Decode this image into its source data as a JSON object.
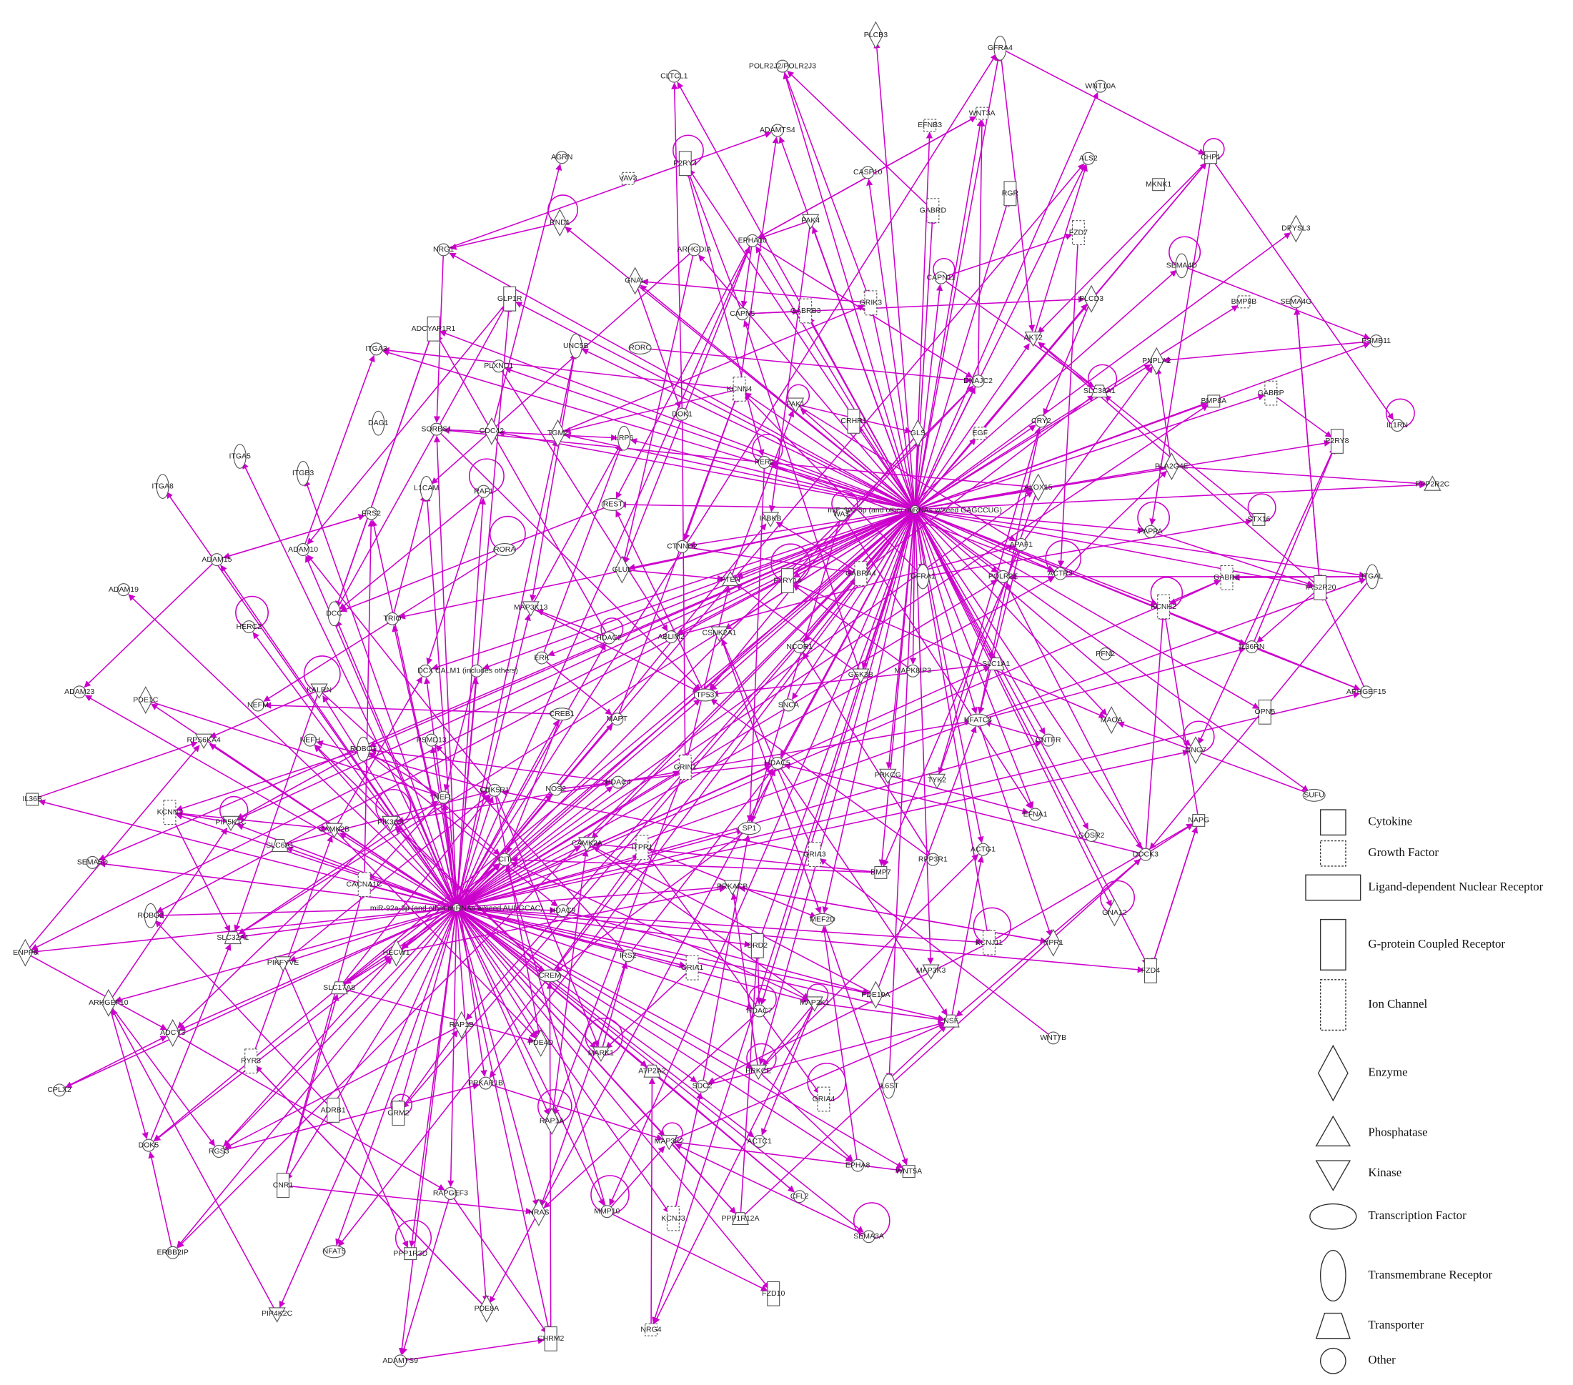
{
  "nodes": [
    {
      "label": "miR-92a-3p (and other miRNAs w/seed AUUGCAC)"
    },
    {
      "label": "miR-30c-5p (and other miRNAs w/seed GAGCCUG)"
    },
    {
      "label": "PLCB3"
    },
    {
      "label": "GFRA4"
    },
    {
      "label": "POLR2J2/POLR2J3"
    },
    {
      "label": "CLTCL1"
    },
    {
      "label": "WNT10A"
    },
    {
      "label": "ADAMTS4"
    },
    {
      "label": "EFNB3"
    },
    {
      "label": "WNT3A"
    },
    {
      "label": "ALS2"
    },
    {
      "label": "CHP1"
    },
    {
      "label": "AGRN"
    },
    {
      "label": "P2RY4"
    },
    {
      "label": "VAV3"
    },
    {
      "label": "CASP10"
    },
    {
      "label": "MKNK1"
    },
    {
      "label": "RGR"
    },
    {
      "label": "GABRD"
    },
    {
      "label": "RND1"
    },
    {
      "label": "PAK4"
    },
    {
      "label": "FZD7"
    },
    {
      "label": "DPYSL3"
    },
    {
      "label": "NRG1"
    },
    {
      "label": "ARHGDIA"
    },
    {
      "label": "EPHA10"
    },
    {
      "label": "SEMA4D"
    },
    {
      "label": "GNAL"
    },
    {
      "label": "CAPN11"
    },
    {
      "label": "GLP1R"
    },
    {
      "label": "GABRB3"
    },
    {
      "label": "GRIK3"
    },
    {
      "label": "PLCD3"
    },
    {
      "label": "BMP8B"
    },
    {
      "label": "SEMA4G"
    },
    {
      "label": "CAPN5"
    },
    {
      "label": "ADCYAP1R1"
    },
    {
      "label": "UNC5B"
    },
    {
      "label": "RORC"
    },
    {
      "label": "PSMB11"
    },
    {
      "label": "ITGA3"
    },
    {
      "label": "AKT2"
    },
    {
      "label": "PNPLA2"
    },
    {
      "label": "PLXNC1"
    },
    {
      "label": "KCNN4"
    },
    {
      "label": "DNAJC2"
    },
    {
      "label": "SLC38A1"
    },
    {
      "label": "BMP8A"
    },
    {
      "label": "GABRP"
    },
    {
      "label": "PAK1"
    },
    {
      "label": "DOK1"
    },
    {
      "label": "DAG1"
    },
    {
      "label": "SORBS1"
    },
    {
      "label": "CDC42"
    },
    {
      "label": "TGM2"
    },
    {
      "label": "LRP6"
    },
    {
      "label": "CRHR1"
    },
    {
      "label": "CRY2"
    },
    {
      "label": "IL1RN"
    },
    {
      "label": "P2RY8"
    },
    {
      "label": "GLS"
    },
    {
      "label": "EGF"
    },
    {
      "label": "ITGA5"
    },
    {
      "label": "ITGB3"
    },
    {
      "label": "PER2"
    },
    {
      "label": "PLA2G4E"
    },
    {
      "label": "PPP2R2C"
    },
    {
      "label": "ITGA8"
    },
    {
      "label": "L1CAM"
    },
    {
      "label": "RAF1"
    },
    {
      "label": "ALOX15"
    },
    {
      "label": "REST"
    },
    {
      "label": "FRS2"
    },
    {
      "label": "IKBKB"
    },
    {
      "label": "WAS"
    },
    {
      "label": "STX16"
    },
    {
      "label": "PAPPA"
    },
    {
      "label": "ADAM10"
    },
    {
      "label": "RORA"
    },
    {
      "label": "CTNND2"
    },
    {
      "label": "APAF1"
    },
    {
      "label": "ADAM15"
    },
    {
      "label": "GLUL"
    },
    {
      "label": "PTEN"
    },
    {
      "label": "P2RY14"
    },
    {
      "label": "GABRA4"
    },
    {
      "label": "GFRA1"
    },
    {
      "label": "GABRE"
    },
    {
      "label": "ITGAL"
    },
    {
      "label": "TAS2R20"
    },
    {
      "label": "ADAM19"
    },
    {
      "label": "ACTR3"
    },
    {
      "label": "POLR2E"
    },
    {
      "label": "DCC"
    },
    {
      "label": "KCNH2"
    },
    {
      "label": "MAP3K13"
    },
    {
      "label": "TRIO"
    },
    {
      "label": "HERC2"
    },
    {
      "label": "HDAC2"
    },
    {
      "label": "ABLIM2"
    },
    {
      "label": "CSNK2A1"
    },
    {
      "label": "NCOR1"
    },
    {
      "label": "IL36RN"
    },
    {
      "label": "PFN2"
    },
    {
      "label": "ERK"
    },
    {
      "label": "GSK3B"
    },
    {
      "label": "MAPK8IP3"
    },
    {
      "label": "SLC1A1"
    },
    {
      "label": "DCX"
    },
    {
      "label": "CALM1 (includes others)"
    },
    {
      "label": "KALRN"
    },
    {
      "label": "TP53"
    },
    {
      "label": "ADAM23"
    },
    {
      "label": "PDE1C"
    },
    {
      "label": "NEFM"
    },
    {
      "label": "CREB1"
    },
    {
      "label": "MAPT"
    },
    {
      "label": "SNCA"
    },
    {
      "label": "NFATC4"
    },
    {
      "label": "OPN5"
    },
    {
      "label": "ARHGEF15"
    },
    {
      "label": "MAOA"
    },
    {
      "label": "CNTFR"
    },
    {
      "label": "RPS6KA4"
    },
    {
      "label": "NEFH"
    },
    {
      "label": "ROBO1"
    },
    {
      "label": "PSMD13"
    },
    {
      "label": "HDAC5"
    },
    {
      "label": "GNG7"
    },
    {
      "label": "GRIN1"
    },
    {
      "label": "HDAC4"
    },
    {
      "label": "PRKCG"
    },
    {
      "label": "TYK2"
    },
    {
      "label": "NOS2"
    },
    {
      "label": "CDK5R1"
    },
    {
      "label": "SUFU"
    },
    {
      "label": "IL36B"
    },
    {
      "label": "KCNN3"
    },
    {
      "label": "NEFL"
    },
    {
      "label": "EFNA1"
    },
    {
      "label": "GOSR2"
    },
    {
      "label": "NAPG"
    },
    {
      "label": "PIP5K1C"
    },
    {
      "label": "SP1"
    },
    {
      "label": "CAMK2B"
    },
    {
      "label": "PIK3C3"
    },
    {
      "label": "SLC6A1"
    },
    {
      "label": "CAMK2A"
    },
    {
      "label": "ITPR1"
    },
    {
      "label": "DOCK3"
    },
    {
      "label": "ACTG1"
    },
    {
      "label": "RPP3R1"
    },
    {
      "label": "GRIA3"
    },
    {
      "label": "BMP7"
    },
    {
      "label": "SEMA5D"
    },
    {
      "label": "CIT"
    },
    {
      "label": "CACNA1C"
    },
    {
      "label": "PRKACB"
    },
    {
      "label": "MEF2D"
    },
    {
      "label": "HDAC9"
    },
    {
      "label": "ROBO2"
    },
    {
      "label": "DRD2"
    },
    {
      "label": "GNA12"
    },
    {
      "label": "KCNJ11"
    },
    {
      "label": "NPR1"
    },
    {
      "label": "SLC32A1"
    },
    {
      "label": "ENPP6"
    },
    {
      "label": "PIKFYVE"
    },
    {
      "label": "HECW1"
    },
    {
      "label": "CREM"
    },
    {
      "label": "IRS2"
    },
    {
      "label": "GRIA1"
    },
    {
      "label": "MAP3K3"
    },
    {
      "label": "FZD4"
    },
    {
      "label": "SLC17A8"
    },
    {
      "label": "PDE10A"
    },
    {
      "label": "ARHGEF10"
    },
    {
      "label": "MAP2K1"
    },
    {
      "label": "NSF"
    },
    {
      "label": "RAP1B"
    },
    {
      "label": "ADCY3"
    },
    {
      "label": "PDE4D"
    },
    {
      "label": "HDAC7"
    },
    {
      "label": "WNT7B"
    },
    {
      "label": "MARK1"
    },
    {
      "label": "RYR3"
    },
    {
      "label": "ATP2A2"
    },
    {
      "label": "PRKAR1B"
    },
    {
      "label": "PRKCE"
    },
    {
      "label": "SDC2"
    },
    {
      "label": "IL6ST"
    },
    {
      "label": "CPLX2"
    },
    {
      "label": "GRIA4"
    },
    {
      "label": "ADRB1"
    },
    {
      "label": "GRM2"
    },
    {
      "label": "RAP1A"
    },
    {
      "label": "MAP3K2"
    },
    {
      "label": "ACTC1"
    },
    {
      "label": "DOK5"
    },
    {
      "label": "RGS3"
    },
    {
      "label": "EPHA8"
    },
    {
      "label": "WNT5A"
    },
    {
      "label": "CNR1"
    },
    {
      "label": "RAPGEF3"
    },
    {
      "label": "CFL2"
    },
    {
      "label": "NRAS"
    },
    {
      "label": "MMP10"
    },
    {
      "label": "PPP1R12A"
    },
    {
      "label": "KCNJ3"
    },
    {
      "label": "SEMA3A"
    },
    {
      "label": "ERBB2IP"
    },
    {
      "label": "NFAT5"
    },
    {
      "label": "PPP1R3D"
    },
    {
      "label": "FZD10"
    },
    {
      "label": "PDE8A"
    },
    {
      "label": "PIP4K2C"
    },
    {
      "label": "NRG4"
    },
    {
      "label": "CHRM2"
    },
    {
      "label": "ADAMTS9"
    }
  ],
  "legend": [
    "Cytokine",
    "Growth Factor",
    "Ligand-dependent  Nuclear Receptor",
    "G-protein Coupled Receptor",
    "Ion Channel",
    "Enzyme",
    "Phosphatase",
    "Kinase",
    "Transcription  Factor",
    "Transmembrane  Receptor",
    "Transporter",
    "Other"
  ]
}
